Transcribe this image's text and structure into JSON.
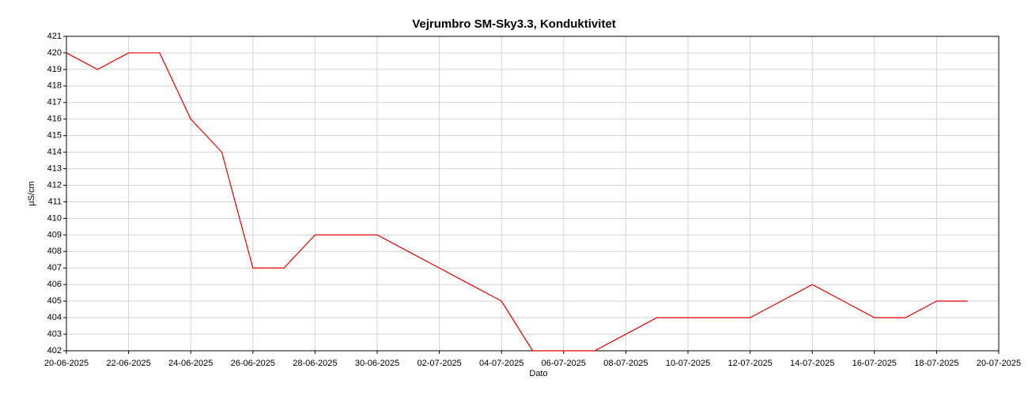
{
  "chart_data": {
    "type": "line",
    "title": "Vejrumbro SM-Sky3.3, Konduktivitet",
    "x_label": "Dato",
    "y_label": "µS/cm",
    "x": [
      "20-06-2025",
      "21-06-2025",
      "22-06-2025",
      "23-06-2025",
      "24-06-2025",
      "25-06-2025",
      "26-06-2025",
      "27-06-2025",
      "28-06-2025",
      "29-06-2025",
      "30-06-2025",
      "01-07-2025",
      "02-07-2025",
      "03-07-2025",
      "04-07-2025",
      "05-07-2025",
      "06-07-2025",
      "07-07-2025",
      "08-07-2025",
      "09-07-2025",
      "10-07-2025",
      "11-07-2025",
      "12-07-2025",
      "13-07-2025",
      "14-07-2025",
      "15-07-2025",
      "16-07-2025",
      "17-07-2025",
      "18-07-2025",
      "19-07-2025"
    ],
    "series": [
      {
        "color": "#e00000",
        "values": [
          420,
          419,
          420,
          420,
          416,
          414,
          407,
          407,
          409,
          409,
          409,
          408,
          407,
          406,
          405,
          402,
          402,
          402,
          403,
          404,
          404,
          404,
          404,
          405,
          406,
          405,
          404,
          404,
          405,
          405
        ]
      }
    ],
    "xlim": [
      "20-06-2025",
      "20-07-2025"
    ],
    "xticks": [
      "20-06-2025",
      "22-06-2025",
      "24-06-2025",
      "26-06-2025",
      "28-06-2025",
      "30-06-2025",
      "02-07-2025",
      "04-07-2025",
      "06-07-2025",
      "08-07-2025",
      "10-07-2025",
      "12-07-2025",
      "14-07-2025",
      "16-07-2025",
      "18-07-2025",
      "20-07-2025"
    ],
    "ylim": [
      402,
      421
    ],
    "yticks": [
      402,
      403,
      404,
      405,
      406,
      407,
      408,
      409,
      410,
      411,
      412,
      413,
      414,
      415,
      416,
      417,
      418,
      419,
      420,
      421
    ],
    "grid": true
  }
}
